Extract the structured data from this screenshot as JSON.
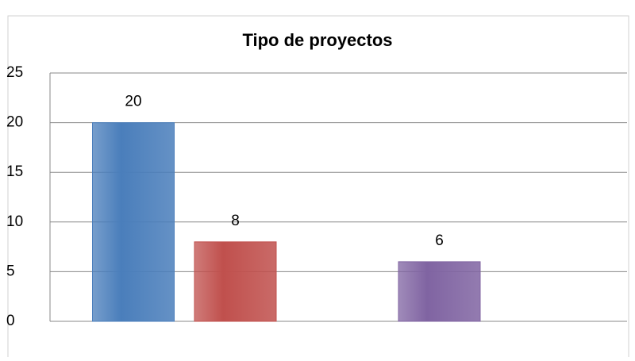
{
  "chart_data": {
    "type": "bar",
    "title": "Tipo de proyectos",
    "categories": [
      null,
      null,
      null,
      null
    ],
    "values": [
      20,
      8,
      null,
      6
    ],
    "colors": [
      "#4a7ebb",
      "#c0504d",
      "#9bbb59",
      "#8064a2"
    ],
    "ylim": [
      0,
      25
    ],
    "yticks": [
      0,
      5,
      10,
      15,
      20,
      25
    ],
    "grid": true
  }
}
